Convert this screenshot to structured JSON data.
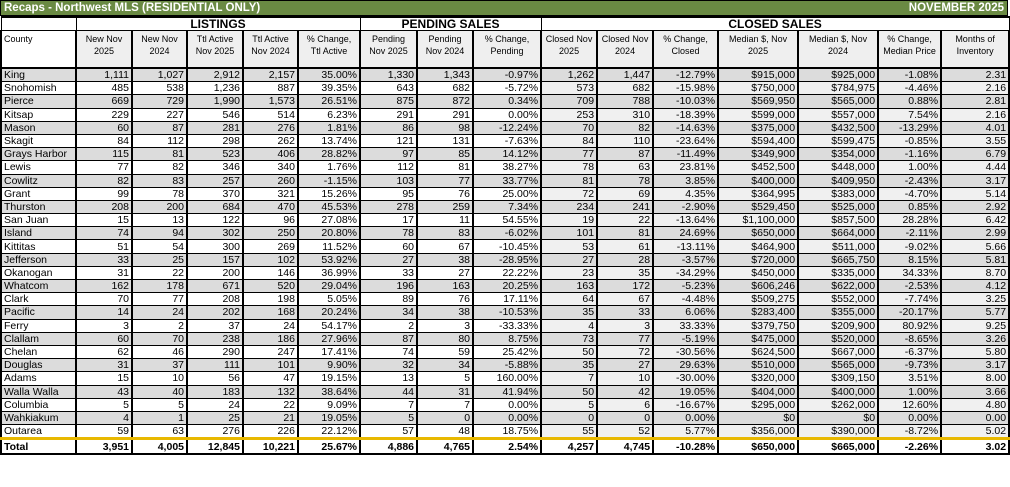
{
  "title": {
    "left": "Recaps - Northwest MLS (RESIDENTIAL ONLY)",
    "right": "NOVEMBER 2025",
    "bar_color": "#6a8a43"
  },
  "groups": {
    "listings": "LISTINGS",
    "pending": "PENDING SALES",
    "closed": "CLOSED SALES"
  },
  "columns": [
    "County",
    "New Nov 2025",
    "New Nov 2024",
    "Ttl Active Nov 2025",
    "Ttl Active Nov 2024",
    "% Change, Ttl Active",
    "Pending Nov 2025",
    "Pending Nov 2024",
    "% Change, Pending",
    "Closed Nov 2025",
    "Closed Nov 2024",
    "% Change, Closed",
    "Median $, Nov 2025",
    "Median $, Nov 2024",
    "% Change, Median Price",
    "Months of Inventory"
  ],
  "rows": [
    [
      "King",
      "1,111",
      "1,027",
      "2,912",
      "2,157",
      "35.00%",
      "1,330",
      "1,343",
      "-0.97%",
      "1,262",
      "1,447",
      "-12.79%",
      "$915,000",
      "$925,000",
      "-1.08%",
      "2.31"
    ],
    [
      "Snohomish",
      "485",
      "538",
      "1,236",
      "887",
      "39.35%",
      "643",
      "682",
      "-5.72%",
      "573",
      "682",
      "-15.98%",
      "$750,000",
      "$784,975",
      "-4.46%",
      "2.16"
    ],
    [
      "Pierce",
      "669",
      "729",
      "1,990",
      "1,573",
      "26.51%",
      "875",
      "872",
      "0.34%",
      "709",
      "788",
      "-10.03%",
      "$569,950",
      "$565,000",
      "0.88%",
      "2.81"
    ],
    [
      "Kitsap",
      "229",
      "227",
      "546",
      "514",
      "6.23%",
      "291",
      "291",
      "0.00%",
      "253",
      "310",
      "-18.39%",
      "$599,000",
      "$557,000",
      "7.54%",
      "2.16"
    ],
    [
      "Mason",
      "60",
      "87",
      "281",
      "276",
      "1.81%",
      "86",
      "98",
      "-12.24%",
      "70",
      "82",
      "-14.63%",
      "$375,000",
      "$432,500",
      "-13.29%",
      "4.01"
    ],
    [
      "Skagit",
      "84",
      "112",
      "298",
      "262",
      "13.74%",
      "121",
      "131",
      "-7.63%",
      "84",
      "110",
      "-23.64%",
      "$594,400",
      "$599,475",
      "-0.85%",
      "3.55"
    ],
    [
      "Grays Harbor",
      "115",
      "81",
      "523",
      "406",
      "28.82%",
      "97",
      "85",
      "14.12%",
      "77",
      "87",
      "-11.49%",
      "$349,900",
      "$354,000",
      "-1.16%",
      "6.79"
    ],
    [
      "Lewis",
      "77",
      "82",
      "346",
      "340",
      "1.76%",
      "112",
      "81",
      "38.27%",
      "78",
      "63",
      "23.81%",
      "$452,500",
      "$448,000",
      "1.00%",
      "4.44"
    ],
    [
      "Cowlitz",
      "82",
      "83",
      "257",
      "260",
      "-1.15%",
      "103",
      "77",
      "33.77%",
      "81",
      "78",
      "3.85%",
      "$400,000",
      "$409,950",
      "-2.43%",
      "3.17"
    ],
    [
      "Grant",
      "99",
      "78",
      "370",
      "321",
      "15.26%",
      "95",
      "76",
      "25.00%",
      "72",
      "69",
      "4.35%",
      "$364,995",
      "$383,000",
      "-4.70%",
      "5.14"
    ],
    [
      "Thurston",
      "208",
      "200",
      "684",
      "470",
      "45.53%",
      "278",
      "259",
      "7.34%",
      "234",
      "241",
      "-2.90%",
      "$529,450",
      "$525,000",
      "0.85%",
      "2.92"
    ],
    [
      "San Juan",
      "15",
      "13",
      "122",
      "96",
      "27.08%",
      "17",
      "11",
      "54.55%",
      "19",
      "22",
      "-13.64%",
      "$1,100,000",
      "$857,500",
      "28.28%",
      "6.42"
    ],
    [
      "Island",
      "74",
      "94",
      "302",
      "250",
      "20.80%",
      "78",
      "83",
      "-6.02%",
      "101",
      "81",
      "24.69%",
      "$650,000",
      "$664,000",
      "-2.11%",
      "2.99"
    ],
    [
      "Kittitas",
      "51",
      "54",
      "300",
      "269",
      "11.52%",
      "60",
      "67",
      "-10.45%",
      "53",
      "61",
      "-13.11%",
      "$464,900",
      "$511,000",
      "-9.02%",
      "5.66"
    ],
    [
      "Jefferson",
      "33",
      "25",
      "157",
      "102",
      "53.92%",
      "27",
      "38",
      "-28.95%",
      "27",
      "28",
      "-3.57%",
      "$720,000",
      "$665,750",
      "8.15%",
      "5.81"
    ],
    [
      "Okanogan",
      "31",
      "22",
      "200",
      "146",
      "36.99%",
      "33",
      "27",
      "22.22%",
      "23",
      "35",
      "-34.29%",
      "$450,000",
      "$335,000",
      "34.33%",
      "8.70"
    ],
    [
      "Whatcom",
      "162",
      "178",
      "671",
      "520",
      "29.04%",
      "196",
      "163",
      "20.25%",
      "163",
      "172",
      "-5.23%",
      "$606,246",
      "$622,000",
      "-2.53%",
      "4.12"
    ],
    [
      "Clark",
      "70",
      "77",
      "208",
      "198",
      "5.05%",
      "89",
      "76",
      "17.11%",
      "64",
      "67",
      "-4.48%",
      "$509,275",
      "$552,000",
      "-7.74%",
      "3.25"
    ],
    [
      "Pacific",
      "14",
      "24",
      "202",
      "168",
      "20.24%",
      "34",
      "38",
      "-10.53%",
      "35",
      "33",
      "6.06%",
      "$283,400",
      "$355,000",
      "-20.17%",
      "5.77"
    ],
    [
      "Ferry",
      "3",
      "2",
      "37",
      "24",
      "54.17%",
      "2",
      "3",
      "-33.33%",
      "4",
      "3",
      "33.33%",
      "$379,750",
      "$209,900",
      "80.92%",
      "9.25"
    ],
    [
      "Clallam",
      "60",
      "70",
      "238",
      "186",
      "27.96%",
      "87",
      "80",
      "8.75%",
      "73",
      "77",
      "-5.19%",
      "$475,000",
      "$520,000",
      "-8.65%",
      "3.26"
    ],
    [
      "Chelan",
      "62",
      "46",
      "290",
      "247",
      "17.41%",
      "74",
      "59",
      "25.42%",
      "50",
      "72",
      "-30.56%",
      "$624,500",
      "$667,000",
      "-6.37%",
      "5.80"
    ],
    [
      "Douglas",
      "31",
      "37",
      "111",
      "101",
      "9.90%",
      "32",
      "34",
      "-5.88%",
      "35",
      "27",
      "29.63%",
      "$510,000",
      "$565,000",
      "-9.73%",
      "3.17"
    ],
    [
      "Adams",
      "15",
      "10",
      "56",
      "47",
      "19.15%",
      "13",
      "5",
      "160.00%",
      "7",
      "10",
      "-30.00%",
      "$320,000",
      "$309,150",
      "3.51%",
      "8.00"
    ],
    [
      "Walla Walla",
      "43",
      "40",
      "183",
      "132",
      "38.64%",
      "44",
      "31",
      "41.94%",
      "50",
      "42",
      "19.05%",
      "$404,000",
      "$400,000",
      "1.00%",
      "3.66"
    ],
    [
      "Columbia",
      "5",
      "5",
      "24",
      "22",
      "9.09%",
      "7",
      "7",
      "0.00%",
      "5",
      "6",
      "-16.67%",
      "$295,000",
      "$262,000",
      "12.60%",
      "4.80"
    ],
    [
      "Wahkiakum",
      "4",
      "1",
      "25",
      "21",
      "19.05%",
      "5",
      "0",
      "0.00%",
      "0",
      "0",
      "0.00%",
      "$0",
      "$0",
      "0.00%",
      "0.00"
    ],
    [
      "Outarea",
      "59",
      "63",
      "276",
      "226",
      "22.12%",
      "57",
      "48",
      "18.75%",
      "55",
      "52",
      "5.77%",
      "$356,000",
      "$390,000",
      "-8.72%",
      "5.02"
    ]
  ],
  "total": [
    "Total",
    "3,951",
    "4,005",
    "12,845",
    "10,221",
    "25.67%",
    "4,886",
    "4,765",
    "2.54%",
    "4,257",
    "4,745",
    "-10.28%",
    "$650,000",
    "$665,000",
    "-2.26%",
    "3.02"
  ],
  "colors": {
    "odd_row": "#dcdcdc",
    "header_fill": "#efefef",
    "total_divider": "#e8b800"
  }
}
